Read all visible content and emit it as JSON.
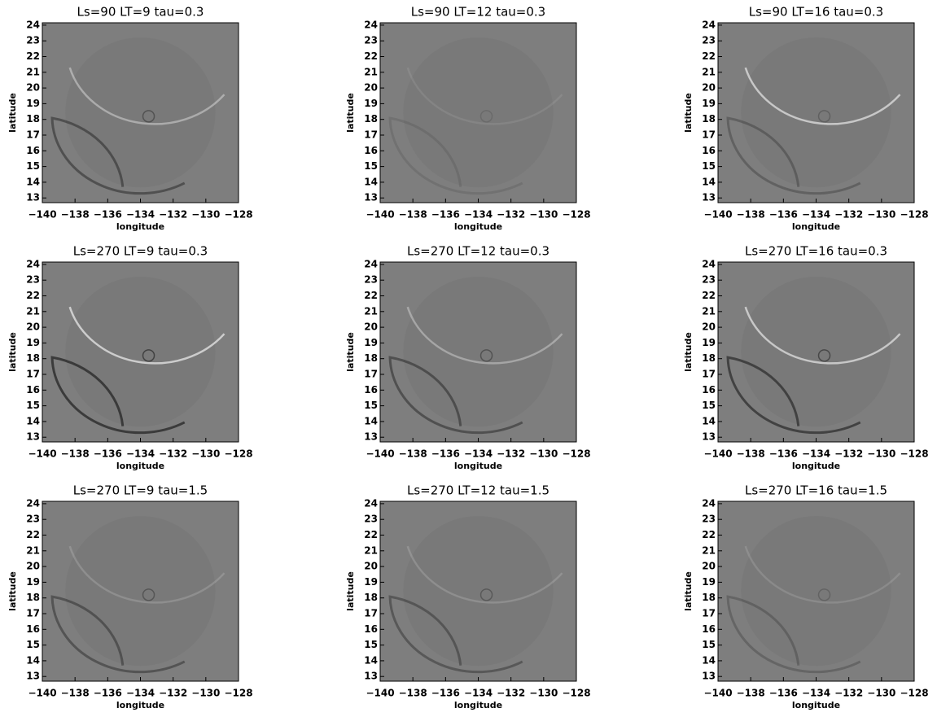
{
  "chart_data": [
    {
      "type": "image",
      "title": "Ls=90 LT=9 tau=0.3",
      "xlabel": "longitude",
      "ylabel": "latitude",
      "xlim": [
        -140,
        -128
      ],
      "ylim": [
        12.7,
        24.15
      ],
      "xticks": [
        {
          "value": -140,
          "label": "−140"
        },
        {
          "value": -138,
          "label": "−138"
        },
        {
          "value": -136,
          "label": "−136"
        },
        {
          "value": -134,
          "label": "−134"
        },
        {
          "value": -132,
          "label": "−132"
        },
        {
          "value": -130,
          "label": "−130"
        },
        {
          "value": -128,
          "label": "−128"
        }
      ],
      "yticks": [
        13,
        14,
        15,
        16,
        17,
        18,
        19,
        20,
        21,
        22,
        23,
        24
      ]
    },
    {
      "type": "image",
      "title": "Ls=90 LT=12 tau=0.3",
      "xlabel": "longitude",
      "ylabel": "latitude",
      "xlim": [
        -140,
        -128
      ],
      "ylim": [
        12.7,
        24.15
      ],
      "xticks": [
        {
          "value": -140,
          "label": "−140"
        },
        {
          "value": -138,
          "label": "−138"
        },
        {
          "value": -136,
          "label": "−136"
        },
        {
          "value": -134,
          "label": "−134"
        },
        {
          "value": -132,
          "label": "−132"
        },
        {
          "value": -130,
          "label": "−130"
        },
        {
          "value": -128,
          "label": "−128"
        }
      ],
      "yticks": [
        13,
        14,
        15,
        16,
        17,
        18,
        19,
        20,
        21,
        22,
        23,
        24
      ]
    },
    {
      "type": "image",
      "title": "Ls=90 LT=16 tau=0.3",
      "xlabel": "longitude",
      "ylabel": "latitude",
      "xlim": [
        -140,
        -128
      ],
      "ylim": [
        12.7,
        24.15
      ],
      "xticks": [
        {
          "value": -140,
          "label": "−140"
        },
        {
          "value": -138,
          "label": "−138"
        },
        {
          "value": -136,
          "label": "−136"
        },
        {
          "value": -134,
          "label": "−134"
        },
        {
          "value": -132,
          "label": "−132"
        },
        {
          "value": -130,
          "label": "−130"
        },
        {
          "value": -128,
          "label": "−128"
        }
      ],
      "yticks": [
        13,
        14,
        15,
        16,
        17,
        18,
        19,
        20,
        21,
        22,
        23,
        24
      ]
    },
    {
      "type": "image",
      "title": "Ls=270 LT=9 tau=0.3",
      "xlabel": "longitude",
      "ylabel": "latitude",
      "xlim": [
        -140,
        -128
      ],
      "ylim": [
        12.7,
        24.15
      ],
      "xticks": [
        {
          "value": -140,
          "label": "−140"
        },
        {
          "value": -138,
          "label": "−138"
        },
        {
          "value": -136,
          "label": "−136"
        },
        {
          "value": -134,
          "label": "−134"
        },
        {
          "value": -132,
          "label": "−132"
        },
        {
          "value": -130,
          "label": "−130"
        },
        {
          "value": -128,
          "label": "−128"
        }
      ],
      "yticks": [
        13,
        14,
        15,
        16,
        17,
        18,
        19,
        20,
        21,
        22,
        23,
        24
      ]
    },
    {
      "type": "image",
      "title": "Ls=270 LT=12 tau=0.3",
      "xlabel": "longitude",
      "ylabel": "latitude",
      "xlim": [
        -140,
        -128
      ],
      "ylim": [
        12.7,
        24.15
      ],
      "xticks": [
        {
          "value": -140,
          "label": "−140"
        },
        {
          "value": -138,
          "label": "−138"
        },
        {
          "value": -136,
          "label": "−136"
        },
        {
          "value": -134,
          "label": "−134"
        },
        {
          "value": -132,
          "label": "−132"
        },
        {
          "value": -130,
          "label": "−130"
        },
        {
          "value": -128,
          "label": "−128"
        }
      ],
      "yticks": [
        13,
        14,
        15,
        16,
        17,
        18,
        19,
        20,
        21,
        22,
        23,
        24
      ]
    },
    {
      "type": "image",
      "title": "Ls=270 LT=16 tau=0.3",
      "xlabel": "longitude",
      "ylabel": "latitude",
      "xlim": [
        -140,
        -128
      ],
      "ylim": [
        12.7,
        24.15
      ],
      "xticks": [
        {
          "value": -140,
          "label": "−140"
        },
        {
          "value": -138,
          "label": "−138"
        },
        {
          "value": -136,
          "label": "−136"
        },
        {
          "value": -134,
          "label": "−134"
        },
        {
          "value": -132,
          "label": "−132"
        },
        {
          "value": -130,
          "label": "−130"
        },
        {
          "value": -128,
          "label": "−128"
        }
      ],
      "yticks": [
        13,
        14,
        15,
        16,
        17,
        18,
        19,
        20,
        21,
        22,
        23,
        24
      ]
    },
    {
      "type": "image",
      "title": "Ls=270 LT=9 tau=1.5",
      "xlabel": "longitude",
      "ylabel": "latitude",
      "xlim": [
        -140,
        -128
      ],
      "ylim": [
        12.7,
        24.15
      ],
      "xticks": [
        {
          "value": -140,
          "label": "−140"
        },
        {
          "value": -138,
          "label": "−138"
        },
        {
          "value": -136,
          "label": "−136"
        },
        {
          "value": -134,
          "label": "−134"
        },
        {
          "value": -132,
          "label": "−132"
        },
        {
          "value": -130,
          "label": "−130"
        },
        {
          "value": -128,
          "label": "−128"
        }
      ],
      "yticks": [
        13,
        14,
        15,
        16,
        17,
        18,
        19,
        20,
        21,
        22,
        23,
        24
      ]
    },
    {
      "type": "image",
      "title": "Ls=270 LT=12 tau=1.5",
      "xlabel": "longitude",
      "ylabel": "latitude",
      "xlim": [
        -140,
        -128
      ],
      "ylim": [
        12.7,
        24.15
      ],
      "xticks": [
        {
          "value": -140,
          "label": "−140"
        },
        {
          "value": -138,
          "label": "−138"
        },
        {
          "value": -136,
          "label": "−136"
        },
        {
          "value": -134,
          "label": "−134"
        },
        {
          "value": -132,
          "label": "−132"
        },
        {
          "value": -130,
          "label": "−130"
        },
        {
          "value": -128,
          "label": "−128"
        }
      ],
      "yticks": [
        13,
        14,
        15,
        16,
        17,
        18,
        19,
        20,
        21,
        22,
        23,
        24
      ]
    },
    {
      "type": "image",
      "title": "Ls=270 LT=16 tau=1.5",
      "xlabel": "longitude",
      "ylabel": "latitude",
      "xlim": [
        -140,
        -128
      ],
      "ylim": [
        12.7,
        24.15
      ],
      "xticks": [
        {
          "value": -140,
          "label": "−140"
        },
        {
          "value": -138,
          "label": "−138"
        },
        {
          "value": -136,
          "label": "−136"
        },
        {
          "value": -134,
          "label": "−134"
        },
        {
          "value": -132,
          "label": "−132"
        },
        {
          "value": -130,
          "label": "−130"
        },
        {
          "value": -128,
          "label": "−128"
        }
      ],
      "yticks": [
        13,
        14,
        15,
        16,
        17,
        18,
        19,
        20,
        21,
        22,
        23,
        24
      ]
    }
  ]
}
